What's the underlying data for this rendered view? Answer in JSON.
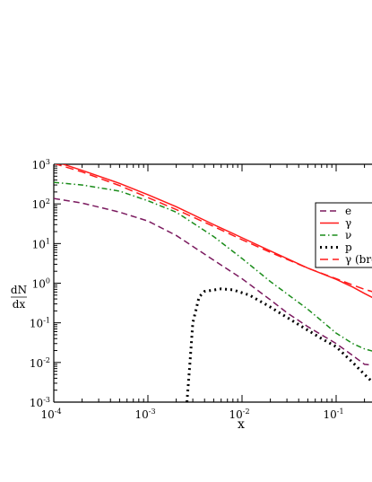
{
  "chart_data": {
    "type": "line",
    "xscale": "log",
    "yscale": "log",
    "xlim": [
      0.0001,
      0.25
    ],
    "ylim": [
      0.001,
      1000
    ],
    "xlabel": "x",
    "ylabel_top": "dN",
    "ylabel_bottom": "dx",
    "x_ticks": [
      {
        "value": 0.0001,
        "base": "10",
        "exp": "-4"
      },
      {
        "value": 0.001,
        "base": "10",
        "exp": "-3"
      },
      {
        "value": 0.01,
        "base": "10",
        "exp": "-2"
      },
      {
        "value": 0.1,
        "base": "10",
        "exp": "-1"
      }
    ],
    "y_ticks": [
      {
        "value": 0.001,
        "base": "10",
        "exp": "-3"
      },
      {
        "value": 0.01,
        "base": "10",
        "exp": "-2"
      },
      {
        "value": 0.1,
        "base": "10",
        "exp": "-1"
      },
      {
        "value": 1,
        "base": "10",
        "exp": "0"
      },
      {
        "value": 10,
        "base": "10",
        "exp": "1"
      },
      {
        "value": 100,
        "base": "10",
        "exp": "2"
      },
      {
        "value": 1000,
        "base": "10",
        "exp": "3"
      }
    ],
    "legend_position": "right",
    "series": [
      {
        "name": "e",
        "color": "#7b1a5f",
        "dash": "dashed",
        "points": [
          [
            0.0001,
            137
          ],
          [
            0.0002,
            105
          ],
          [
            0.0005,
            62
          ],
          [
            0.001,
            37
          ],
          [
            0.002,
            16
          ],
          [
            0.005,
            3.8
          ],
          [
            0.01,
            1.3
          ],
          [
            0.02,
            0.38
          ],
          [
            0.03,
            0.18
          ],
          [
            0.05,
            0.08
          ],
          [
            0.1,
            0.03
          ],
          [
            0.15,
            0.015
          ],
          [
            0.2,
            0.009
          ],
          [
            0.25,
            0.0085
          ]
        ]
      },
      {
        "name": "γ",
        "color": "#ff1a1a",
        "dash": "solid",
        "points": [
          [
            0.0001,
            1200
          ],
          [
            0.0002,
            700
          ],
          [
            0.0005,
            330
          ],
          [
            0.001,
            170
          ],
          [
            0.002,
            85
          ],
          [
            0.005,
            30
          ],
          [
            0.01,
            14
          ],
          [
            0.02,
            6.5
          ],
          [
            0.05,
            2.4
          ],
          [
            0.1,
            1.25
          ],
          [
            0.15,
            0.8
          ],
          [
            0.2,
            0.55
          ],
          [
            0.25,
            0.42
          ]
        ]
      },
      {
        "name": "ν",
        "color": "#1a8c1a",
        "dash": "dashdot",
        "points": [
          [
            0.0001,
            350
          ],
          [
            0.0002,
            300
          ],
          [
            0.0005,
            210
          ],
          [
            0.001,
            120
          ],
          [
            0.002,
            62
          ],
          [
            0.005,
            15
          ],
          [
            0.01,
            4.2
          ],
          [
            0.02,
            1.1
          ],
          [
            0.05,
            0.22
          ],
          [
            0.1,
            0.055
          ],
          [
            0.15,
            0.03
          ],
          [
            0.2,
            0.022
          ],
          [
            0.25,
            0.019
          ]
        ]
      },
      {
        "name": "p",
        "color": "#000000",
        "dash": "dotted",
        "points": [
          [
            0.0026,
            0.001
          ],
          [
            0.0028,
            0.01
          ],
          [
            0.003,
            0.1
          ],
          [
            0.0035,
            0.45
          ],
          [
            0.004,
            0.62
          ],
          [
            0.006,
            0.72
          ],
          [
            0.008,
            0.68
          ],
          [
            0.012,
            0.5
          ],
          [
            0.02,
            0.25
          ],
          [
            0.04,
            0.09
          ],
          [
            0.07,
            0.04
          ],
          [
            0.1,
            0.025
          ],
          [
            0.15,
            0.01
          ],
          [
            0.2,
            0.005
          ],
          [
            0.25,
            0.003
          ]
        ]
      },
      {
        "name": "γ (bre",
        "color": "#ff1a1a",
        "dash": "longdash",
        "points": [
          [
            0.0001,
            1050
          ],
          [
            0.0002,
            640
          ],
          [
            0.0005,
            290
          ],
          [
            0.001,
            145
          ],
          [
            0.002,
            72
          ],
          [
            0.005,
            27
          ],
          [
            0.01,
            12.5
          ],
          [
            0.02,
            6.0
          ],
          [
            0.05,
            2.4
          ],
          [
            0.1,
            1.3
          ],
          [
            0.15,
            0.9
          ],
          [
            0.2,
            0.7
          ],
          [
            0.25,
            0.6
          ]
        ]
      }
    ]
  }
}
